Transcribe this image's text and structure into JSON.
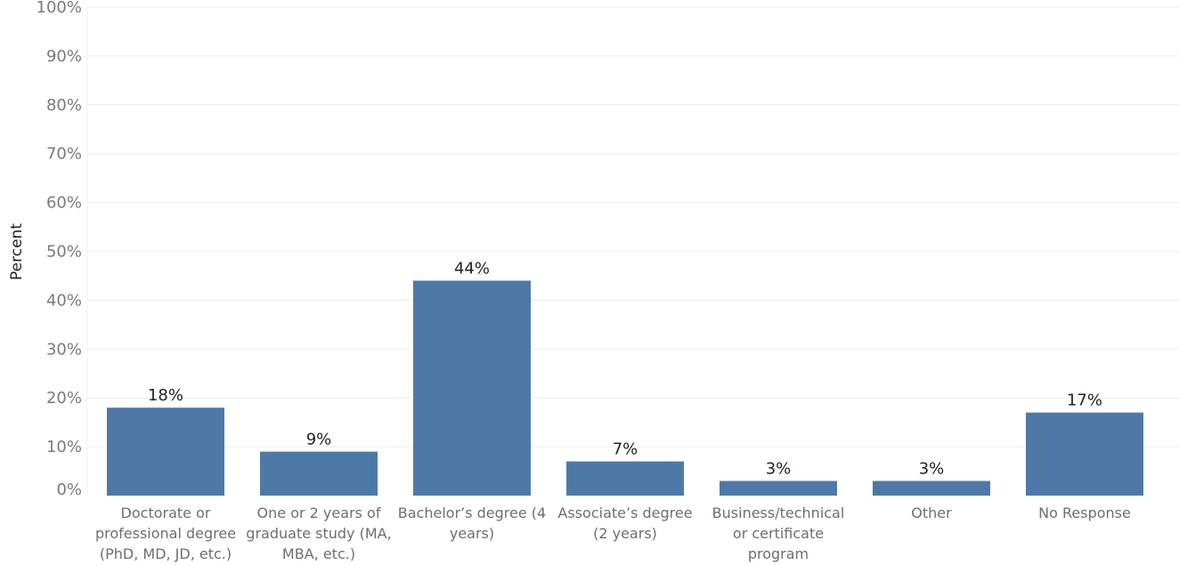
{
  "chart_data": {
    "type": "bar",
    "xlabel": "",
    "ylabel": "Percent",
    "ylim": [
      0,
      100
    ],
    "yticks": [
      "0%",
      "10%",
      "20%",
      "30%",
      "40%",
      "50%",
      "60%",
      "70%",
      "80%",
      "90%",
      "100%"
    ],
    "grid": true,
    "bar_color": "#4e79a7",
    "categories": [
      [
        "Doctorate or",
        "professional degree",
        "(PhD, MD, JD, etc.)"
      ],
      [
        "One or 2 years of",
        "graduate study (MA,",
        "MBA, etc.)"
      ],
      [
        "Bachelor’s degree (4",
        "years)"
      ],
      [
        "Associate’s degree",
        "(2 years)"
      ],
      [
        "Business/technical",
        "or certificate",
        "program"
      ],
      [
        "Other"
      ],
      [
        "No Response"
      ]
    ],
    "values": [
      18,
      9,
      44,
      7,
      3,
      3,
      17
    ],
    "value_labels": [
      "18%",
      "9%",
      "44%",
      "7%",
      "3%",
      "3%",
      "17%"
    ]
  }
}
